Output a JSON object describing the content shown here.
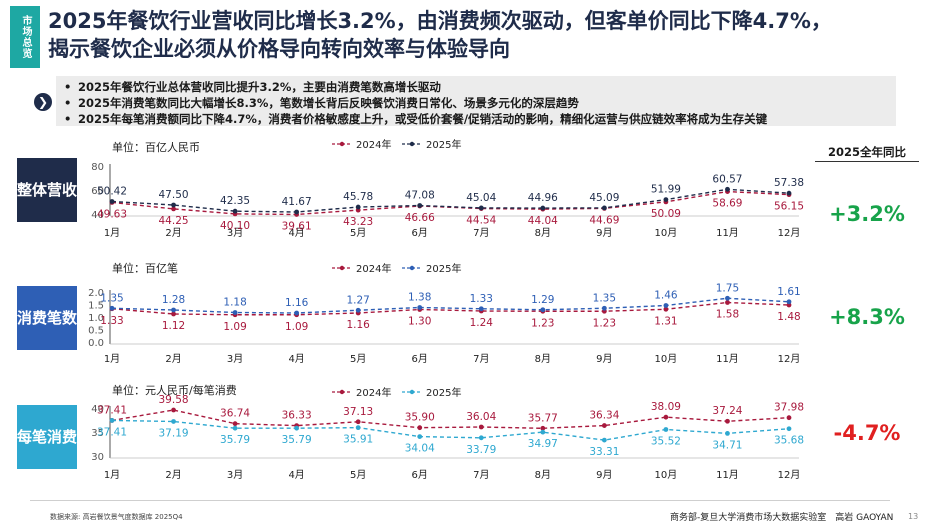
{
  "section_tag": "市场总览",
  "headline": [
    "2025年餐饮行业营收同比增长3.2%，由消费频次驱动，但客单价同比下降4.7%，",
    "揭示餐饮企业必须从价格导向转向效率与体验导向"
  ],
  "summary": [
    "2025年餐饮行业总体营收同比提升3.2%，主要由消费笔数高增长驱动",
    "2025年消费笔数同比大幅增长8.3%，笔数增长背后反映餐饮消费日常化、场景多元化的深层趋势",
    "2025年每笔消费额同比下降4.7%，消费者价格敏感度上升，或受低价套餐/促销活动的影响，精细化运营与供应链效率将成为生存关键"
  ],
  "yoy_header": "2025全年同比",
  "colors": {
    "y2024": "#a8193d",
    "revenue2025": "#1f2c4a",
    "count2025": "#2e5fb5",
    "avg2025": "#2ea8d0",
    "up": "#17a34a",
    "down": "#e02020",
    "tag": "#1ea8a3"
  },
  "chart_data": [
    {
      "type": "line",
      "row_label": "整体营收",
      "unit": "单位：百亿人民币",
      "label_color": "#1f2c4a",
      "categories": [
        "1月",
        "2月",
        "3月",
        "4月",
        "5月",
        "6月",
        "7月",
        "8月",
        "9月",
        "10月",
        "11月",
        "12月"
      ],
      "yticks": [
        "80",
        "60",
        "40"
      ],
      "ylim": [
        40,
        80
      ],
      "series": [
        {
          "name": "2024年",
          "values": [
            49.63,
            44.25,
            40.1,
            39.61,
            43.23,
            46.66,
            44.54,
            44.04,
            44.69,
            50.09,
            58.69,
            56.15
          ]
        },
        {
          "name": "2025年",
          "values": [
            50.42,
            47.5,
            42.35,
            41.67,
            45.78,
            47.08,
            45.04,
            44.96,
            45.09,
            51.99,
            60.57,
            57.38
          ]
        }
      ],
      "yoy": "+3.2%"
    },
    {
      "type": "line",
      "row_label": "消费笔数",
      "unit": "单位：百亿笔",
      "label_color": "#2e5fb5",
      "categories": [
        "1月",
        "2月",
        "3月",
        "4月",
        "5月",
        "6月",
        "7月",
        "8月",
        "9月",
        "10月",
        "11月",
        "12月"
      ],
      "yticks": [
        "2.0",
        "1.5",
        "1.0",
        "0.5",
        "0.0"
      ],
      "ylim": [
        0,
        2
      ],
      "series": [
        {
          "name": "2024年",
          "values": [
            1.33,
            1.12,
            1.09,
            1.09,
            1.16,
            1.3,
            1.24,
            1.23,
            1.23,
            1.31,
            1.58,
            1.48
          ]
        },
        {
          "name": "2025年",
          "values": [
            1.35,
            1.28,
            1.18,
            1.16,
            1.27,
            1.38,
            1.33,
            1.29,
            1.35,
            1.46,
            1.75,
            1.61
          ]
        }
      ],
      "yoy": "+8.3%"
    },
    {
      "type": "line",
      "row_label": "每笔消费",
      "unit": "单位：元人民币/每笔消费",
      "label_color": "#2ea8d0",
      "categories": [
        "1月",
        "2月",
        "3月",
        "4月",
        "5月",
        "6月",
        "7月",
        "8月",
        "9月",
        "10月",
        "11月",
        "12月"
      ],
      "yticks": [
        "40",
        "35",
        "30"
      ],
      "ylim": [
        30,
        40
      ],
      "series": [
        {
          "name": "2024年",
          "values": [
            37.41,
            39.58,
            36.74,
            36.33,
            37.13,
            35.9,
            36.04,
            35.77,
            36.34,
            38.09,
            37.24,
            37.98
          ]
        },
        {
          "name": "2025年",
          "values": [
            37.41,
            37.19,
            35.79,
            35.79,
            35.91,
            34.04,
            33.79,
            34.97,
            33.31,
            35.52,
            34.71,
            35.68
          ]
        }
      ],
      "yoy": "-4.7%"
    }
  ],
  "footer": {
    "source": "数据来源: 高岩餐饮景气度数据库 2025Q4",
    "credit": "商务部-复旦大学消费市场大数据实验室　高岩 GAOYAN",
    "page": "13"
  }
}
